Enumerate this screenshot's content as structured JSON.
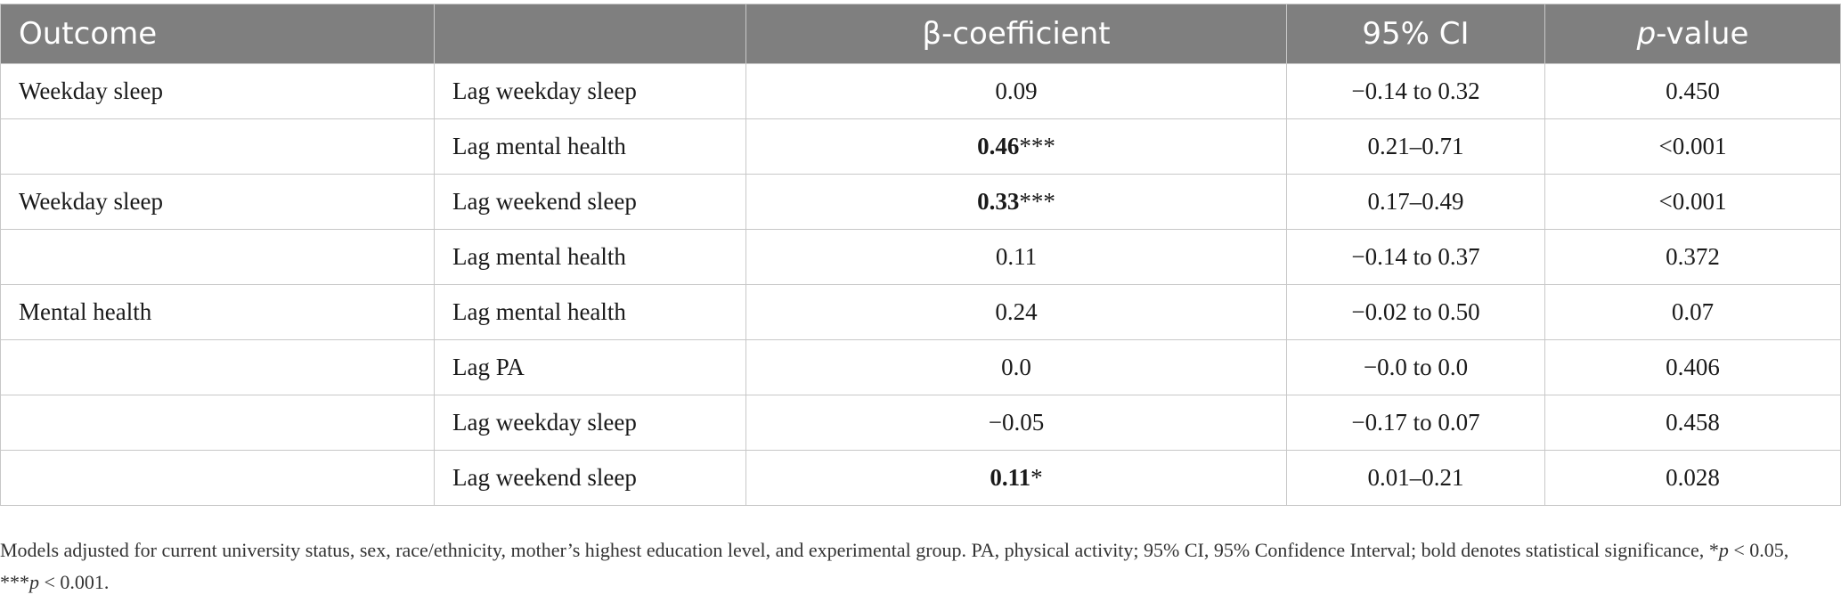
{
  "headers": {
    "outcome": "Outcome",
    "predictor": "",
    "beta_symbol": "β",
    "beta_rest": "-coefficient",
    "ci": "95% CI",
    "p_italic": "p",
    "p_rest": "-value"
  },
  "rows": [
    {
      "outcome": "Weekday sleep",
      "predictor": "Lag weekday sleep",
      "beta": "0.09",
      "beta_mark": "",
      "ci": "−0.14 to 0.32",
      "p": "0.450"
    },
    {
      "outcome": "",
      "predictor": "Lag mental health",
      "beta": "0.46",
      "beta_mark": "***",
      "ci": "0.21–0.71",
      "p": "<0.001"
    },
    {
      "outcome": "Weekday sleep",
      "predictor": "Lag weekend sleep",
      "beta": "0.33",
      "beta_mark": "***",
      "ci": "0.17–0.49",
      "p": "<0.001"
    },
    {
      "outcome": "",
      "predictor": "Lag mental health",
      "beta": "0.11",
      "beta_mark": "",
      "ci": "−0.14 to 0.37",
      "p": "0.372"
    },
    {
      "outcome": "Mental health",
      "predictor": "Lag mental health",
      "beta": "0.24",
      "beta_mark": "",
      "ci": "−0.02 to 0.50",
      "p": "0.07"
    },
    {
      "outcome": "",
      "predictor": "Lag PA",
      "beta": "0.0",
      "beta_mark": "",
      "ci": "−0.0 to 0.0",
      "p": "0.406"
    },
    {
      "outcome": "",
      "predictor": "Lag weekday sleep",
      "beta": "−0.05",
      "beta_mark": "",
      "ci": "−0.17 to 0.07",
      "p": "0.458"
    },
    {
      "outcome": "",
      "predictor": "Lag weekend sleep",
      "beta": "0.11",
      "beta_mark": "*",
      "ci": "0.01–0.21",
      "p": "0.028"
    }
  ],
  "footnote": {
    "main": "Models adjusted for current university status, sex, race/ethnicity, mother’s highest education level, and experimental group. PA, physical activity; 95% CI, 95% Confidence Interval; bold denotes statistical significance, ",
    "p1": "p",
    "t1": " < 0.05, ",
    "stars2": "***",
    "p2": "p",
    "t2": " < 0.001."
  }
}
